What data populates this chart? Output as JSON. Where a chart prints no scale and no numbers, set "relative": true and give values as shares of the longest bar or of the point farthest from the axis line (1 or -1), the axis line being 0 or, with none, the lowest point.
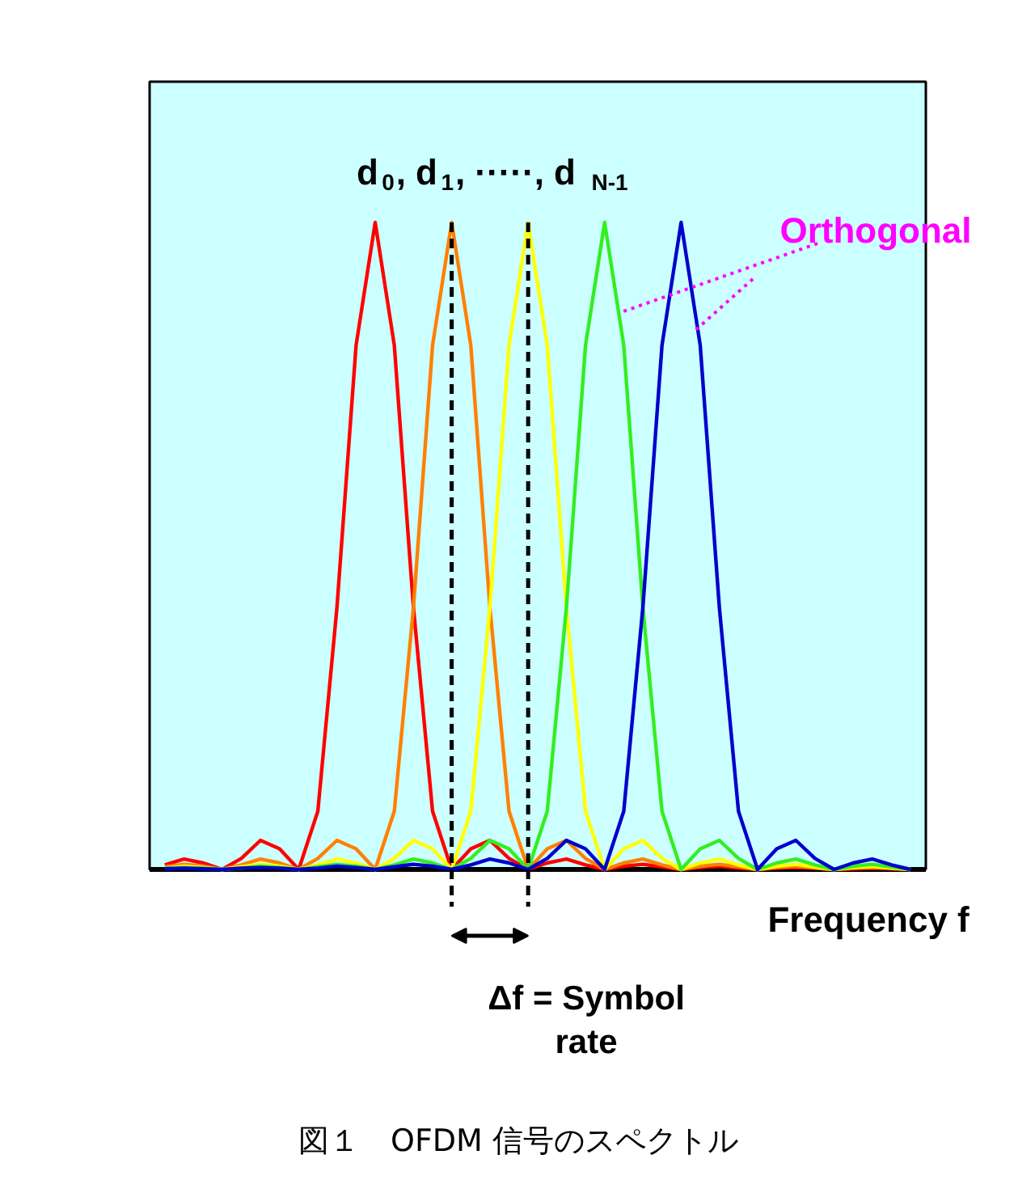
{
  "chart_data": {
    "type": "line",
    "relative": true,
    "tick_labels": false,
    "grid": false,
    "title": "図１　OFDM 信号のスペクトル",
    "xlabel": "Frequency  f",
    "annotations": [
      "d$_{0}$,  d$_{1}$, ·····, d$_{N-1}$",
      "Orthogonal",
      "Δf = Symbol\nrate"
    ],
    "categories": [
      null,
      null,
      null,
      null,
      null,
      null,
      null,
      null,
      null,
      null,
      null,
      null,
      null,
      null,
      null,
      null,
      null,
      null,
      null,
      null,
      null,
      null,
      null,
      null,
      null,
      null,
      null,
      null,
      null,
      null,
      null,
      null,
      null,
      null,
      null,
      null,
      null,
      null,
      null,
      null
    ],
    "series": [
      {
        "color": "#ff0000",
        "values": [
          0.007,
          0.016,
          0.01,
          0,
          0.017,
          0.045,
          0.032,
          0,
          0.09,
          0.405,
          0.81,
          1,
          0.81,
          0.405,
          0.09,
          0,
          0.032,
          0.045,
          0.017,
          0,
          0.01,
          0.016,
          0.007,
          0,
          0.005,
          0.008,
          0.004,
          0,
          0.003,
          0.005,
          0.002,
          0,
          0.002,
          0.003,
          0.002,
          0,
          0.001,
          0.002,
          0.001,
          0
        ]
      },
      {
        "color": "#ff8000",
        "values": [
          0.004,
          0.008,
          0.005,
          0,
          0.007,
          0.016,
          0.01,
          0,
          0.017,
          0.045,
          0.032,
          0,
          0.09,
          0.405,
          0.81,
          1,
          0.81,
          0.405,
          0.09,
          0,
          0.032,
          0.045,
          0.017,
          0,
          0.01,
          0.016,
          0.007,
          0,
          0.005,
          0.008,
          0.004,
          0,
          0.003,
          0.005,
          0.002,
          0,
          0.002,
          0.003,
          0.002,
          0
        ]
      },
      {
        "color": "#ffff00",
        "values": [
          0.002,
          0.005,
          0.003,
          0,
          0.004,
          0.008,
          0.005,
          0,
          0.007,
          0.016,
          0.01,
          0,
          0.017,
          0.045,
          0.032,
          0,
          0.09,
          0.405,
          0.81,
          1,
          0.81,
          0.405,
          0.09,
          0,
          0.032,
          0.045,
          0.017,
          0,
          0.01,
          0.016,
          0.007,
          0,
          0.005,
          0.008,
          0.004,
          0,
          0.003,
          0.005,
          0.002,
          0
        ]
      },
      {
        "color": "#33ee22",
        "values": [
          0.002,
          0.003,
          0.002,
          0,
          0.002,
          0.005,
          0.003,
          0,
          0.004,
          0.008,
          0.005,
          0,
          0.007,
          0.016,
          0.01,
          0,
          0.017,
          0.045,
          0.032,
          0,
          0.09,
          0.405,
          0.81,
          1,
          0.81,
          0.405,
          0.09,
          0,
          0.032,
          0.045,
          0.017,
          0,
          0.01,
          0.016,
          0.007,
          0,
          0.005,
          0.008,
          0.004,
          0
        ]
      },
      {
        "color": "#0000cc",
        "values": [
          0.001,
          0.002,
          0.001,
          0,
          0.002,
          0.003,
          0.002,
          0,
          0.002,
          0.005,
          0.003,
          0,
          0.004,
          0.008,
          0.005,
          0,
          0.007,
          0.016,
          0.01,
          0,
          0.017,
          0.045,
          0.032,
          0,
          0.09,
          0.405,
          0.81,
          1,
          0.81,
          0.405,
          0.09,
          0,
          0.032,
          0.045,
          0.017,
          0,
          0.01,
          0.016,
          0.007,
          0
        ]
      }
    ]
  }
}
